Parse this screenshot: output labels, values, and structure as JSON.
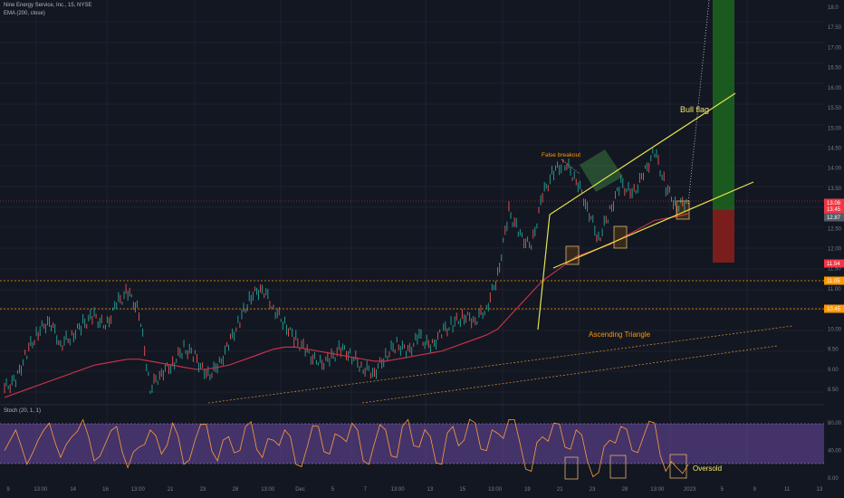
{
  "header": {
    "symbol": "Nine Energy Service, Inc., 15, NYSE",
    "indicator": "EMA (200, close)",
    "stoch_label": "Stoch (20, 1, 1)"
  },
  "chart_data": {
    "type": "line",
    "y_ticks": [
      "18.0",
      "17.50",
      "17.00",
      "16.50",
      "16.00",
      "15.50",
      "15.00",
      "14.50",
      "14.00",
      "13.50",
      "13.00",
      "12.50",
      "12.00",
      "11.50",
      "11.00",
      "10.50",
      "10.00",
      "9.50",
      "9.00",
      "8.50"
    ],
    "stoch_ticks": [
      "80.00",
      "40.00",
      "0.00"
    ],
    "x_ticks": [
      "9",
      "13:00",
      "14",
      "16",
      "13:00",
      "21",
      "23",
      "28",
      "13:00",
      "Dec",
      "5",
      "7",
      "13:00",
      "13",
      "15",
      "13:00",
      "19",
      "21",
      "23",
      "28",
      "13:00",
      "2023",
      "5",
      "9",
      "11",
      "13"
    ],
    "price_tags": [
      {
        "text": "13.08",
        "color": "#f23645"
      },
      {
        "text": "13.45",
        "color": "#f23645"
      },
      {
        "text": "12.87",
        "color": "#555a66"
      },
      {
        "text": "11.54",
        "color": "#f23645"
      },
      {
        "text": "11.05",
        "color": "#ff9800"
      },
      {
        "text": "10.45",
        "color": "#ff9800"
      }
    ],
    "annotations": {
      "bull_flag": "Bull flag",
      "false_breakout": "False breakout",
      "ascending_triangle": "Ascending Triangle",
      "oversold": "Oversold"
    },
    "price_series": [
      8.5,
      8.7,
      9.4,
      9.9,
      10.2,
      9.6,
      9.8,
      10.1,
      10.3,
      10.0,
      10.6,
      10.9,
      10.4,
      8.5,
      8.9,
      9.1,
      9.5,
      9.3,
      8.8,
      9.0,
      9.6,
      10.2,
      10.8,
      11.0,
      10.5,
      10.1,
      9.7,
      9.4,
      9.1,
      9.2,
      9.5,
      9.3,
      9.0,
      8.9,
      9.3,
      9.6,
      9.4,
      9.8,
      9.5,
      9.9,
      10.1,
      10.3,
      10.2,
      10.5,
      11.3,
      12.9,
      12.3,
      12.0,
      13.3,
      13.9,
      14.1,
      13.7,
      13.0,
      12.2,
      12.9,
      13.6,
      13.3,
      13.8,
      14.4,
      13.5,
      13.0,
      13.2
    ],
    "ema_series": [
      8.3,
      8.4,
      8.5,
      8.6,
      8.7,
      8.8,
      8.9,
      9.0,
      9.1,
      9.15,
      9.2,
      9.25,
      9.25,
      9.2,
      9.15,
      9.1,
      9.05,
      9.0,
      9.0,
      9.05,
      9.1,
      9.2,
      9.3,
      9.4,
      9.5,
      9.55,
      9.55,
      9.5,
      9.45,
      9.4,
      9.35,
      9.3,
      9.25,
      9.2,
      9.2,
      9.25,
      9.3,
      9.35,
      9.4,
      9.45,
      9.55,
      9.65,
      9.75,
      9.85,
      10.0,
      10.3,
      10.6,
      10.9,
      11.2,
      11.4,
      11.6,
      11.8,
      11.9,
      12.0,
      12.1,
      12.25,
      12.4,
      12.55,
      12.7,
      12.75,
      12.8,
      12.87
    ],
    "stoch_series": [
      40,
      70,
      20,
      55,
      80,
      30,
      60,
      85,
      25,
      50,
      75,
      15,
      45,
      70,
      35,
      80,
      20,
      55,
      78,
      25,
      60,
      40,
      82,
      30,
      55,
      70,
      20,
      45,
      75,
      35,
      60,
      80,
      25,
      50,
      70,
      30,
      85,
      45,
      60,
      20,
      75,
      55,
      80,
      40,
      65,
      85,
      50,
      10,
      60,
      80,
      45,
      70,
      25,
      8,
      55,
      75,
      40,
      60,
      80,
      10,
      15,
      20
    ]
  }
}
